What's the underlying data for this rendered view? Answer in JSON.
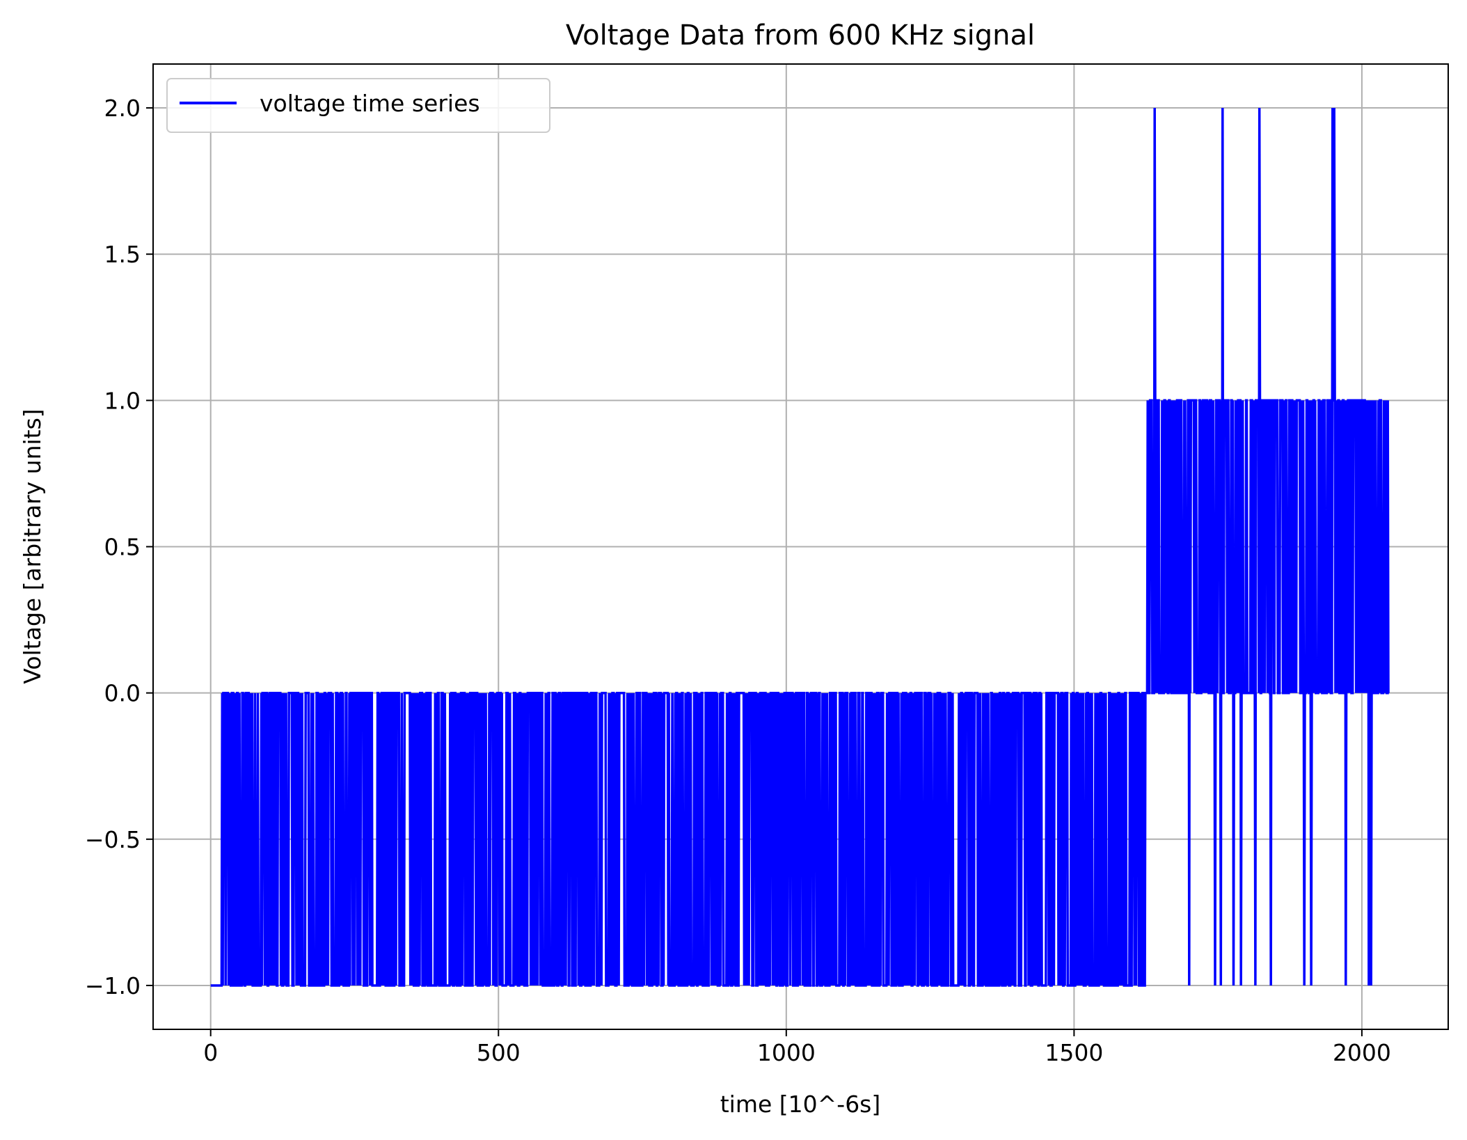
{
  "chart_data": {
    "type": "line",
    "title": "Voltage Data from 600 KHz signal",
    "xlabel": "time [10^-6s]",
    "ylabel": "Voltage [arbitrary units]",
    "xlim": [
      -100,
      2150
    ],
    "ylim": [
      -1.15,
      2.15
    ],
    "x_ticks": [
      0,
      500,
      1000,
      1500,
      2000
    ],
    "x_tick_labels": [
      "0",
      "500",
      "1000",
      "1500",
      "2000"
    ],
    "y_ticks": [
      -1.0,
      -0.5,
      0.0,
      0.5,
      1.0,
      1.5,
      2.0
    ],
    "y_tick_labels": [
      "−1.0",
      "−0.5",
      "0.0",
      "0.5",
      "1.0",
      "1.5",
      "2.0"
    ],
    "grid": true,
    "legend_position": "top-left",
    "color": "#0000ff",
    "series": [
      {
        "name": "voltage time series",
        "description_of_shape": "",
        "segments": [
          {
            "x_range": [
              0,
              20
            ],
            "levels": [
              -1
            ]
          },
          {
            "x_range": [
              20,
              1628
            ],
            "levels": [
              -1,
              0
            ]
          },
          {
            "x_range": [
              1628,
              2048
            ],
            "levels": [
              0,
              1
            ]
          }
        ],
        "dips_to_minus_one": [
          1700,
          1745,
          1755,
          1777,
          1790,
          1815,
          1822,
          1842,
          1900,
          1912,
          1972,
          2012,
          2016
        ],
        "spikes_to_two": [
          1640,
          1758,
          1822,
          1949,
          1952
        ]
      }
    ]
  }
}
